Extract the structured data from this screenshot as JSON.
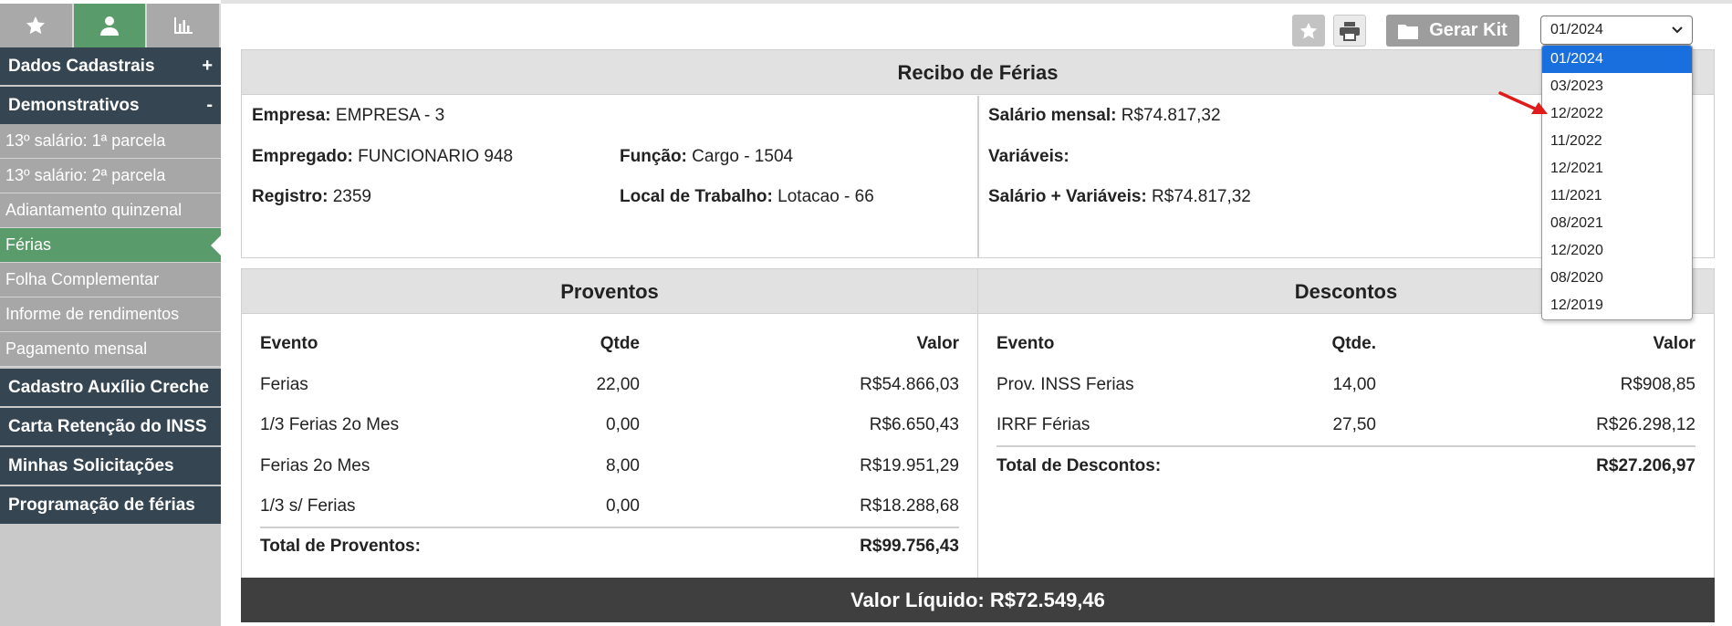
{
  "sidebar": {
    "tabs": [
      {
        "icon": "star-icon"
      },
      {
        "icon": "user-icon",
        "active": true
      },
      {
        "icon": "bar-chart-icon"
      }
    ],
    "sections": [
      {
        "label": "Dados Cadastrais",
        "sign": "+"
      },
      {
        "label": "Demonstrativos",
        "sign": "-"
      }
    ],
    "sub_items": [
      "13º salário: 1ª parcela",
      "13º salário: 2ª parcela",
      "Adiantamento quinzenal",
      "Férias",
      "Folha Complementar",
      "Informe de rendimentos",
      "Pagamento mensal"
    ],
    "active_sub": "Férias",
    "links": [
      "Cadastro Auxílio Creche",
      "Carta Retenção do INSS",
      "Minhas Solicitações",
      "Programação de férias"
    ]
  },
  "toolbar": {
    "kit_label": "Gerar Kit",
    "selected_period": "01/2024"
  },
  "recibo": {
    "title": "Recibo de Férias",
    "empresa_label": "Empresa:",
    "empresa_value": "EMPRESA - 3",
    "empregado_label": "Empregado:",
    "empregado_value": "FUNCIONARIO 948",
    "funcao_label": "Função:",
    "funcao_value": "Cargo - 1504",
    "registro_label": "Registro:",
    "registro_value": "2359",
    "local_label": "Local de Trabalho:",
    "local_value": "Lotacao - 66",
    "salario_label": "Salário mensal:",
    "salario_value": "R$74.817,32",
    "variaveis_label": "Variáveis:",
    "variaveis_value": "",
    "salvar_label": "Salário + Variáveis:",
    "salvar_value": "R$74.817,32"
  },
  "proventos": {
    "title": "Proventos",
    "headers": {
      "evento": "Evento",
      "qtde": "Qtde",
      "valor": "Valor"
    },
    "rows": [
      {
        "evento": "Ferias",
        "qtde": "22,00",
        "valor": "R$54.866,03"
      },
      {
        "evento": "1/3 Ferias 2o Mes",
        "qtde": "0,00",
        "valor": "R$6.650,43"
      },
      {
        "evento": "Ferias 2o Mes",
        "qtde": "8,00",
        "valor": "R$19.951,29"
      },
      {
        "evento": "1/3 s/ Ferias",
        "qtde": "0,00",
        "valor": "R$18.288,68"
      }
    ],
    "total_label": "Total de Proventos:",
    "total_value": "R$99.756,43"
  },
  "descontos": {
    "title": "Descontos",
    "headers": {
      "evento": "Evento",
      "qtde": "Qtde.",
      "valor": "Valor"
    },
    "rows": [
      {
        "evento": "Prov. INSS Ferias",
        "qtde": "14,00",
        "valor": "R$908,85"
      },
      {
        "evento": "IRRF Férias",
        "qtde": "27,50",
        "valor": "R$26.298,12"
      }
    ],
    "total_label": "Total de Descontos:",
    "total_value": "R$27.206,97"
  },
  "liquido": {
    "label": "Valor Líquido:",
    "value": "R$72.549,46"
  },
  "dropdown": {
    "options": [
      "01/2024",
      "03/2023",
      "12/2022",
      "11/2022",
      "12/2021",
      "11/2021",
      "08/2021",
      "12/2020",
      "08/2020",
      "12/2019"
    ],
    "selected": "01/2024"
  },
  "colors": {
    "sidebar_dark": "#354552",
    "sidebar_active": "#5a9b6b",
    "sidebar_sub": "#a7a7a7",
    "select_highlight": "#1a6fde",
    "arrow": "#e01b1b",
    "liquido_bg": "#3f3f3f"
  }
}
